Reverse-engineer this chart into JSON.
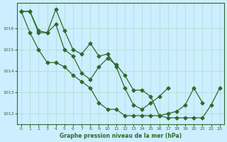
{
  "bg_color": "#cceeff",
  "line_color": "#2d6a2d",
  "grid_color": "#aaddcc",
  "xlabel": "Graphe pression niveau de la mer (hPa)",
  "tick_color": "#2d6a2d",
  "ylim": [
    1011.5,
    1017.2
  ],
  "xlim": [
    -0.5,
    23.5
  ],
  "yticks": [
    1012,
    1013,
    1014,
    1015,
    1016
  ],
  "xticks": [
    0,
    1,
    2,
    3,
    4,
    5,
    6,
    7,
    8,
    9,
    10,
    11,
    12,
    13,
    14,
    15,
    16,
    17,
    18,
    19,
    20,
    21,
    22,
    23
  ],
  "series1_x": [
    0,
    1,
    2,
    3,
    4,
    5,
    6,
    7,
    8,
    9,
    10,
    11,
    12,
    13,
    14,
    15,
    16,
    17,
    18,
    19,
    20,
    21,
    22,
    23
  ],
  "series1_y": [
    1016.8,
    1016.8,
    1015.8,
    1015.8,
    1016.2,
    1015.0,
    1014.7,
    1013.9,
    1013.6,
    1014.2,
    1014.6,
    1014.3,
    1013.8,
    1013.1,
    1013.1,
    1012.8,
    1011.9,
    1011.8,
    1011.8,
    1011.8,
    1011.8,
    1011.8,
    1012.4,
    1013.2
  ],
  "series2_x": [
    0,
    1,
    2,
    3,
    4,
    5,
    6,
    7,
    8,
    9,
    10,
    11,
    12,
    13,
    14,
    15,
    16,
    17
  ],
  "series2_y": [
    1016.8,
    1016.8,
    1015.9,
    1015.8,
    1016.9,
    1015.9,
    1015.0,
    1014.8,
    1015.3,
    1014.7,
    1014.8,
    1014.2,
    1013.2,
    1012.4,
    1012.2,
    1012.5,
    1012.8,
    1013.2
  ],
  "series3_x": [
    0,
    1,
    2,
    3,
    4,
    5,
    6,
    7,
    8,
    9,
    10,
    11,
    12,
    13,
    14,
    15,
    16,
    17,
    18,
    19,
    20,
    21
  ],
  "series3_y": [
    1016.8,
    1015.8,
    1015.0,
    1014.4,
    1014.4,
    1014.2,
    1013.8,
    1013.5,
    1013.2,
    1012.5,
    1012.2,
    1012.2,
    1011.9,
    1011.9,
    1011.9,
    1011.9,
    1011.9,
    1012.0,
    1012.1,
    1012.4,
    1013.2,
    1012.5
  ]
}
